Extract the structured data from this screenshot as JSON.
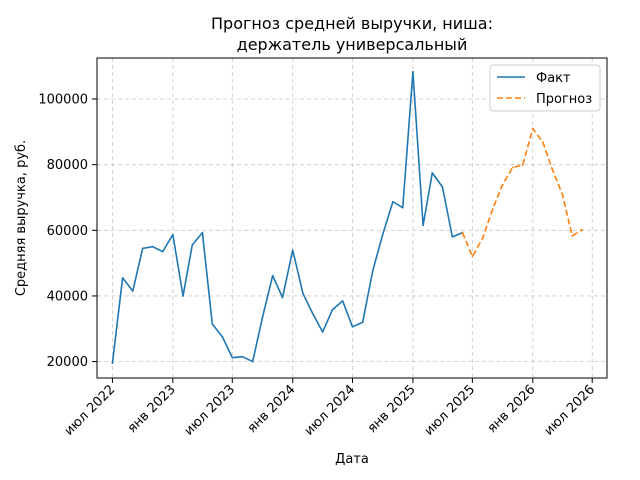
{
  "chart_data": {
    "type": "line",
    "title": [
      "Прогноз средней выручки, ниша:",
      "держатель универсальный"
    ],
    "xlabel": "Дата",
    "ylabel": "Средняя выручка, руб.",
    "ylim": [
      15000,
      112500
    ],
    "y_ticks": [
      20000,
      40000,
      60000,
      80000,
      100000
    ],
    "y_tick_labels": [
      "20000",
      "40000",
      "60000",
      "80000",
      "100000"
    ],
    "xlim": [
      "2022-05-15",
      "2026-08-15"
    ],
    "x_ticks": [
      "2022-07-01",
      "2023-01-01",
      "2023-07-01",
      "2024-01-01",
      "2024-07-01",
      "2025-01-01",
      "2025-07-01",
      "2026-01-01",
      "2026-07-01"
    ],
    "x_tick_labels": [
      "июл 2022",
      "янв 2023",
      "июл 2023",
      "янв 2024",
      "июл 2024",
      "янв 2025",
      "июл 2025",
      "янв 2026",
      "июл 2026"
    ],
    "grid": true,
    "legend_position": "top-right",
    "series": [
      {
        "name": "Факт",
        "color": "#1f77b4",
        "style": "solid",
        "points": [
          [
            "2022-07-01",
            19500
          ],
          [
            "2022-08-01",
            45500
          ],
          [
            "2022-09-01",
            41500
          ],
          [
            "2022-10-01",
            54500
          ],
          [
            "2022-11-01",
            55000
          ],
          [
            "2022-12-01",
            53500
          ],
          [
            "2023-01-01",
            58700
          ],
          [
            "2023-02-01",
            40000
          ],
          [
            "2023-03-01",
            55500
          ],
          [
            "2023-04-01",
            59300
          ],
          [
            "2023-05-01",
            31500
          ],
          [
            "2023-06-01",
            27500
          ],
          [
            "2023-07-01",
            21200
          ],
          [
            "2023-08-01",
            21500
          ],
          [
            "2023-09-01",
            20000
          ],
          [
            "2023-10-01",
            33500
          ],
          [
            "2023-11-01",
            46200
          ],
          [
            "2023-12-01",
            39500
          ],
          [
            "2024-01-01",
            54000
          ],
          [
            "2024-02-01",
            40800
          ],
          [
            "2024-03-01",
            34800
          ],
          [
            "2024-04-01",
            29000
          ],
          [
            "2024-05-01",
            35800
          ],
          [
            "2024-06-01",
            38500
          ],
          [
            "2024-07-01",
            30600
          ],
          [
            "2024-08-01",
            32000
          ],
          [
            "2024-09-01",
            47800
          ],
          [
            "2024-10-01",
            58700
          ],
          [
            "2024-11-01",
            68700
          ],
          [
            "2024-12-01",
            66900
          ],
          [
            "2025-01-01",
            108300
          ],
          [
            "2025-02-01",
            61500
          ],
          [
            "2025-03-01",
            77500
          ],
          [
            "2025-04-01",
            73200
          ],
          [
            "2025-05-01",
            58000
          ],
          [
            "2025-06-01",
            59300
          ]
        ]
      },
      {
        "name": "Прогноз",
        "color": "#ff7f0e",
        "style": "dashed",
        "points": [
          [
            "2025-06-01",
            59300
          ],
          [
            "2025-07-01",
            52000
          ],
          [
            "2025-08-01",
            57500
          ],
          [
            "2025-09-01",
            66500
          ],
          [
            "2025-10-01",
            73900
          ],
          [
            "2025-11-01",
            79200
          ],
          [
            "2025-12-01",
            79800
          ],
          [
            "2026-01-01",
            91000
          ],
          [
            "2026-02-01",
            86800
          ],
          [
            "2026-03-01",
            78700
          ],
          [
            "2026-04-01",
            71000
          ],
          [
            "2026-05-01",
            58300
          ],
          [
            "2026-06-01",
            60200
          ]
        ]
      }
    ]
  }
}
